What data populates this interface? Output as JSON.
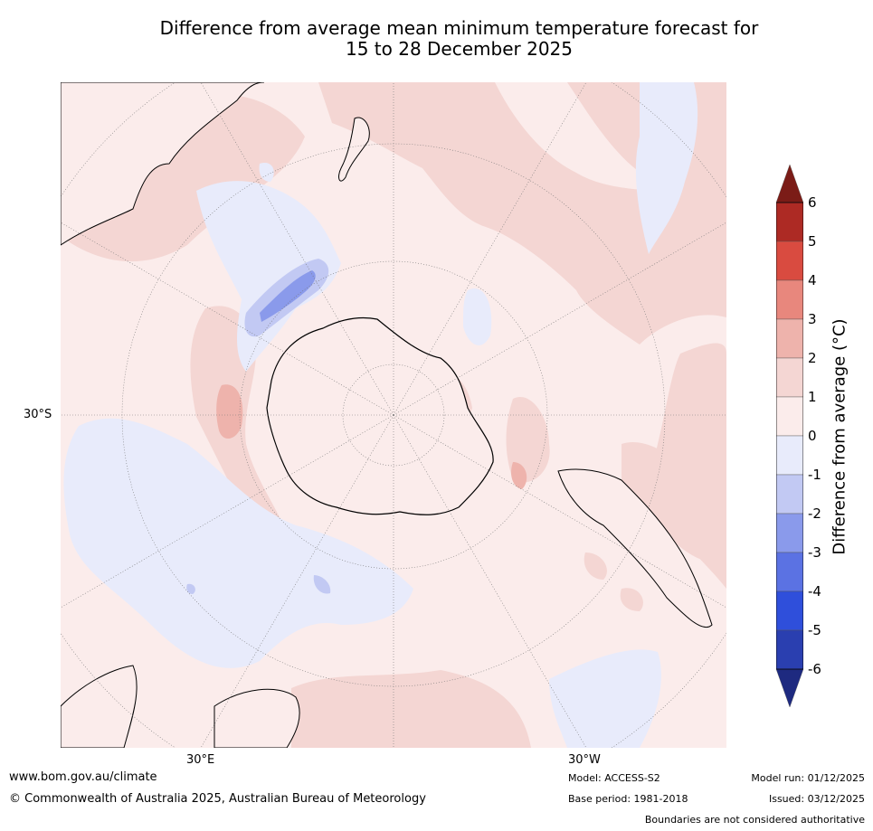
{
  "title_line1": "Difference from average mean minimum temperature forecast for",
  "title_line2": "15 to 28 December 2025",
  "map": {
    "projection": "South polar stereographic",
    "lat_labels": [
      "30°S"
    ],
    "lon_labels": [
      "30°E",
      "30°W"
    ]
  },
  "colorbar": {
    "label": "Difference from average ($^\\circ$C)",
    "label_display": "Difference from average (°C)",
    "ticks": [
      "6",
      "5",
      "4",
      "3",
      "2",
      "1",
      "0",
      "-1",
      "-2",
      "-3",
      "-4",
      "-5",
      "-6"
    ],
    "colors": {
      "above_6": "#7b1c17",
      "c5_6": "#ad2a24",
      "c4_5": "#d94b40",
      "c3_4": "#e8877d",
      "c2_3": "#eeb3ac",
      "c1_2": "#f4d6d3",
      "c0_1": "#fbeceb",
      "cm1_0": "#e8ebfb",
      "cm2_m1": "#c2c9f3",
      "cm3_m2": "#8a9aeb",
      "cm4_m3": "#5b72e3",
      "cm5_m4": "#2f4fdb",
      "cm6_m5": "#2a3fb0",
      "below_m6": "#1e2a80"
    }
  },
  "footer": {
    "website": "www.bom.gov.au/climate",
    "copyright": "© Commonwealth of Australia 2025, Australian Bureau of Meteorology",
    "model": "Model: ACCESS-S2",
    "base_period": "Base period: 1981-2018",
    "model_run": "Model run: 01/12/2025",
    "issued": "Issued: 03/12/2025",
    "disclaimer": "Boundaries are not considered authoritative"
  }
}
